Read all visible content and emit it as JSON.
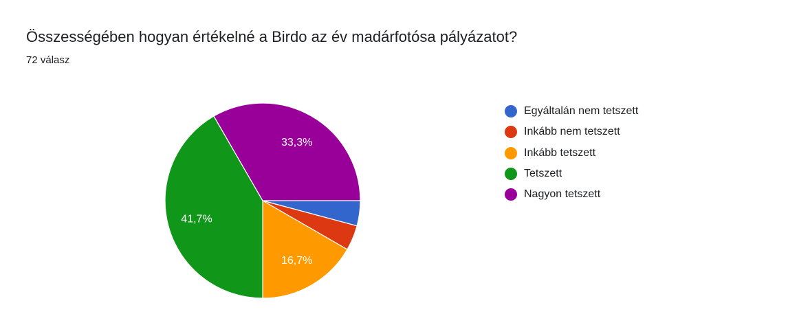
{
  "chart_data": {
    "type": "pie",
    "title": "Összességében hogyan értékelné a Birdo az év madárfotósa pályázatot?",
    "subtitle": "72 válasz",
    "categories": [
      "Egyáltalán nem tetszett",
      "Inkább nem tetszett",
      "Inkább tetszett",
      "Tetszett",
      "Nagyon tetszett"
    ],
    "values": [
      3,
      3,
      12,
      30,
      24
    ],
    "percent_labels": [
      "",
      "",
      "16,7%",
      "41,7%",
      "33,3%"
    ],
    "colors": [
      "#3366cc",
      "#dc3912",
      "#ff9900",
      "#109618",
      "#990099"
    ],
    "legend_position": "right"
  }
}
